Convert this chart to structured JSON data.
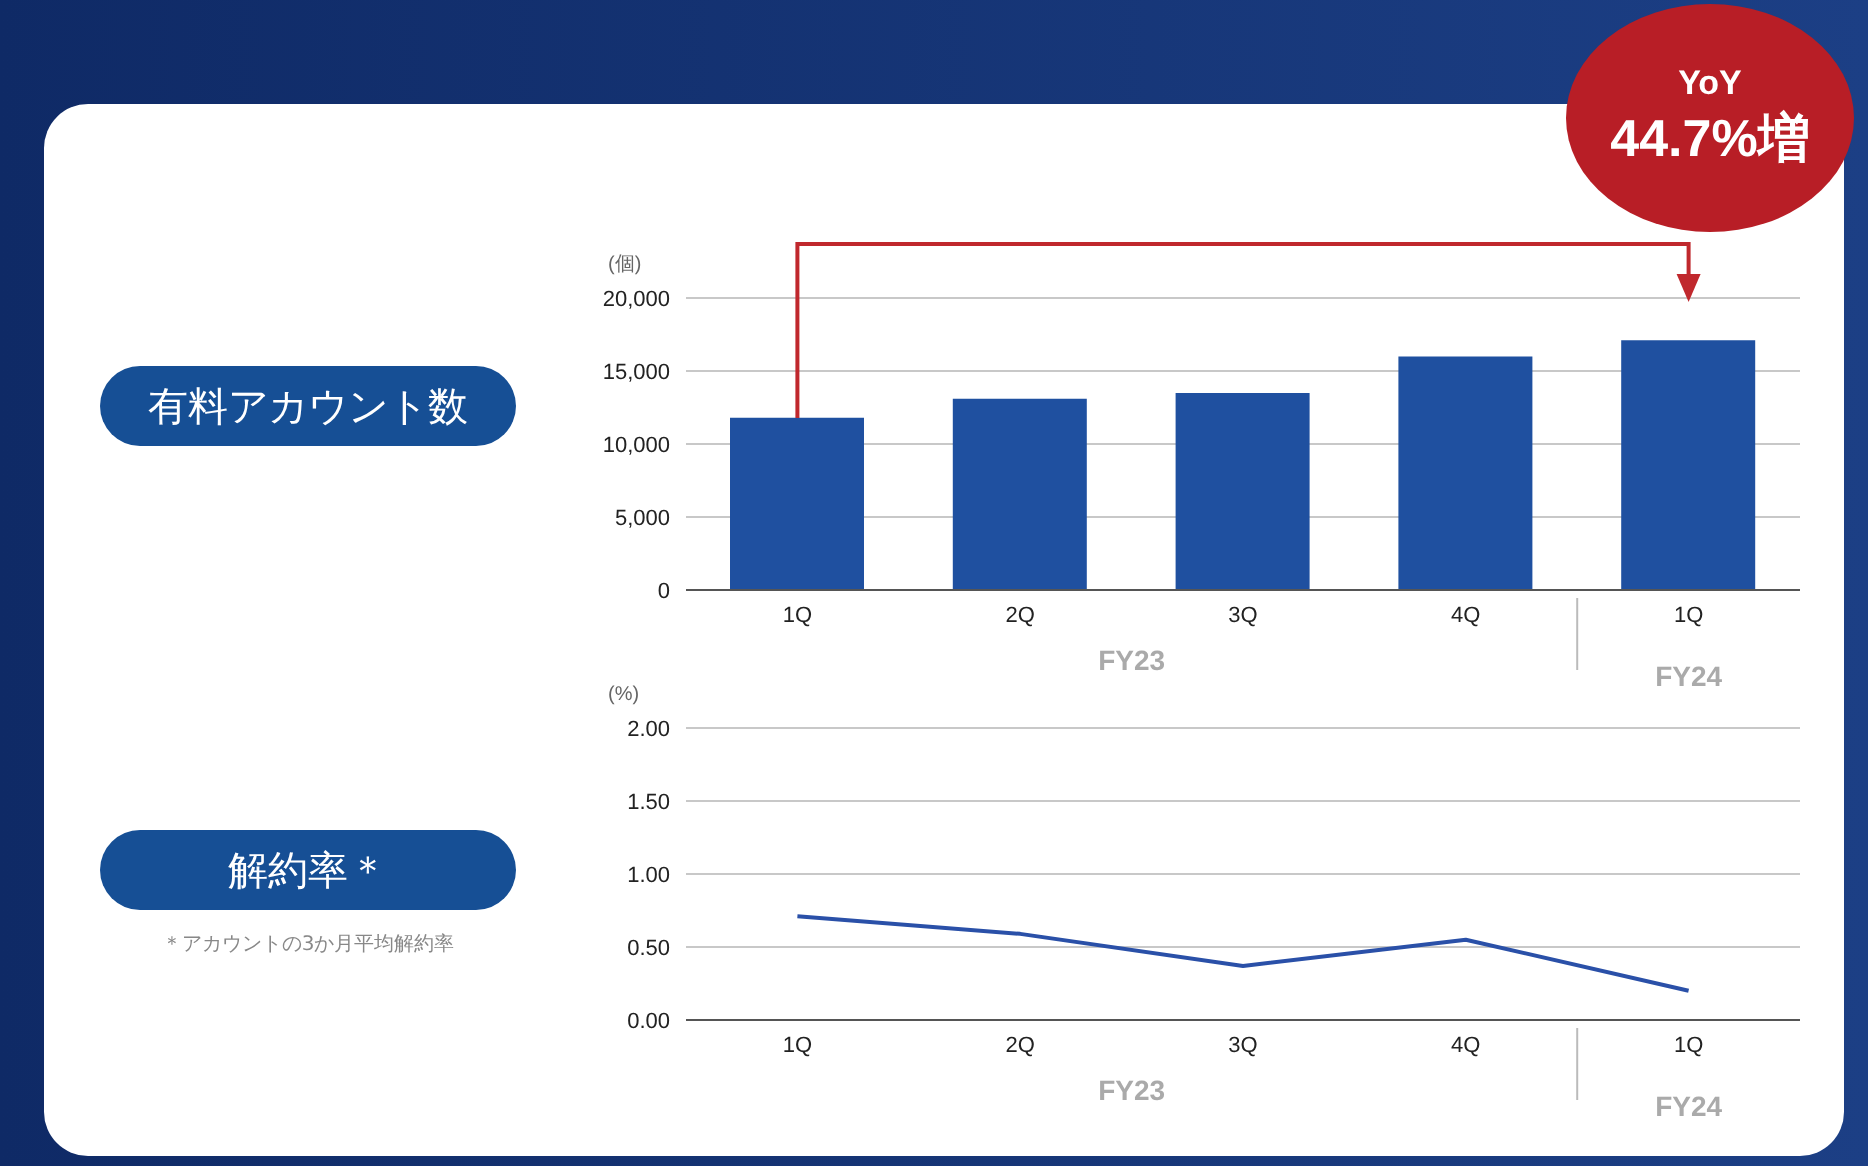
{
  "chart_data": [
    {
      "type": "bar",
      "title": "有料アカウント数",
      "ylabel": "(個)",
      "categories": [
        "1Q",
        "2Q",
        "3Q",
        "4Q",
        "1Q"
      ],
      "series": [
        {
          "color": "#1f50a0",
          "values": [
            11800,
            13100,
            13500,
            16000,
            17100
          ]
        }
      ],
      "ylim": [
        0,
        20000
      ],
      "yticks": [
        {
          "value": 0,
          "label": "0"
        },
        {
          "value": 5000,
          "label": "5,000"
        },
        {
          "value": 10000,
          "label": "10,000"
        },
        {
          "value": 15000,
          "label": "15,000"
        },
        {
          "value": 20000,
          "label": "20,000"
        }
      ],
      "grid": "y",
      "annotations": [
        "FY23",
        "FY24",
        "YoY 44.7%増"
      ]
    },
    {
      "type": "line",
      "title": "解約率＊",
      "ylabel": "(%)",
      "categories": [
        "1Q",
        "2Q",
        "3Q",
        "4Q",
        "1Q"
      ],
      "series": [
        {
          "color": "#2a50a8",
          "values": [
            0.71,
            0.59,
            0.37,
            0.55,
            0.2
          ]
        }
      ],
      "ylim": [
        0,
        2
      ],
      "yticks": [
        {
          "value": 0,
          "label": "0.00"
        },
        {
          "value": 0.5,
          "label": "0.50"
        },
        {
          "value": 1,
          "label": "1.00"
        },
        {
          "value": 1.5,
          "label": "1.50"
        },
        {
          "value": 2,
          "label": "2.00"
        }
      ],
      "grid": "y",
      "marker": "none",
      "annotations": [
        "FY23",
        "FY24",
        "＊アカウントの3か月平均解約率"
      ]
    }
  ]
}
